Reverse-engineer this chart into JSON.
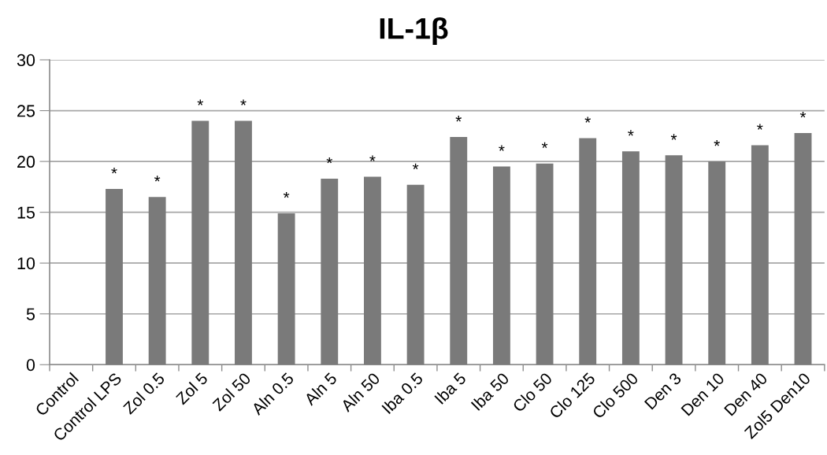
{
  "chart_data": {
    "type": "bar",
    "title": "IL-1β",
    "categories": [
      "Control",
      "Control LPS",
      "Zol 0.5",
      "Zol 5",
      "Zol 50",
      "Aln 0.5",
      "Aln 5",
      "Aln 50",
      "Iba 0.5",
      "Iba 5",
      "Iba 50",
      "Clo 50",
      "Clo 125",
      "Clo 500",
      "Den 3",
      "Den 10",
      "Den 40",
      "Zol5 Den10"
    ],
    "values": [
      0,
      17.3,
      16.5,
      24.0,
      24.0,
      14.9,
      18.3,
      18.5,
      17.7,
      22.4,
      19.5,
      19.8,
      22.3,
      21.0,
      20.6,
      20.0,
      21.6,
      22.8
    ],
    "color": "#7a7a7a",
    "ylim": [
      0,
      30
    ],
    "yticks": [
      0,
      5,
      10,
      15,
      20,
      25,
      30
    ],
    "grid": "y",
    "annotations": [
      {
        "text": "*",
        "x": "Control LPS",
        "y": 17.3
      },
      {
        "text": "*",
        "x": "Zol 0.5",
        "y": 16.5
      },
      {
        "text": "*",
        "x": "Zol 5",
        "y": 24.0
      },
      {
        "text": "*",
        "x": "Zol 50",
        "y": 24.0
      },
      {
        "text": "*",
        "x": "Aln 0.5",
        "y": 14.9
      },
      {
        "text": "*",
        "x": "Aln 5",
        "y": 18.3
      },
      {
        "text": "*",
        "x": "Aln 50",
        "y": 18.5
      },
      {
        "text": "*",
        "x": "Iba 0.5",
        "y": 17.7
      },
      {
        "text": "*",
        "x": "Iba 5",
        "y": 22.4
      },
      {
        "text": "*",
        "x": "Iba 50",
        "y": 19.5
      },
      {
        "text": "*",
        "x": "Clo 50",
        "y": 19.8
      },
      {
        "text": "*",
        "x": "Clo 125",
        "y": 22.3
      },
      {
        "text": "*",
        "x": "Clo 500",
        "y": 21.0
      },
      {
        "text": "*",
        "x": "Den 3",
        "y": 20.6
      },
      {
        "text": "*",
        "x": "Den 10",
        "y": 20.0
      },
      {
        "text": "*",
        "x": "Den 40",
        "y": 21.6
      },
      {
        "text": "*",
        "x": "Zol5 Den10",
        "y": 22.8
      }
    ]
  }
}
